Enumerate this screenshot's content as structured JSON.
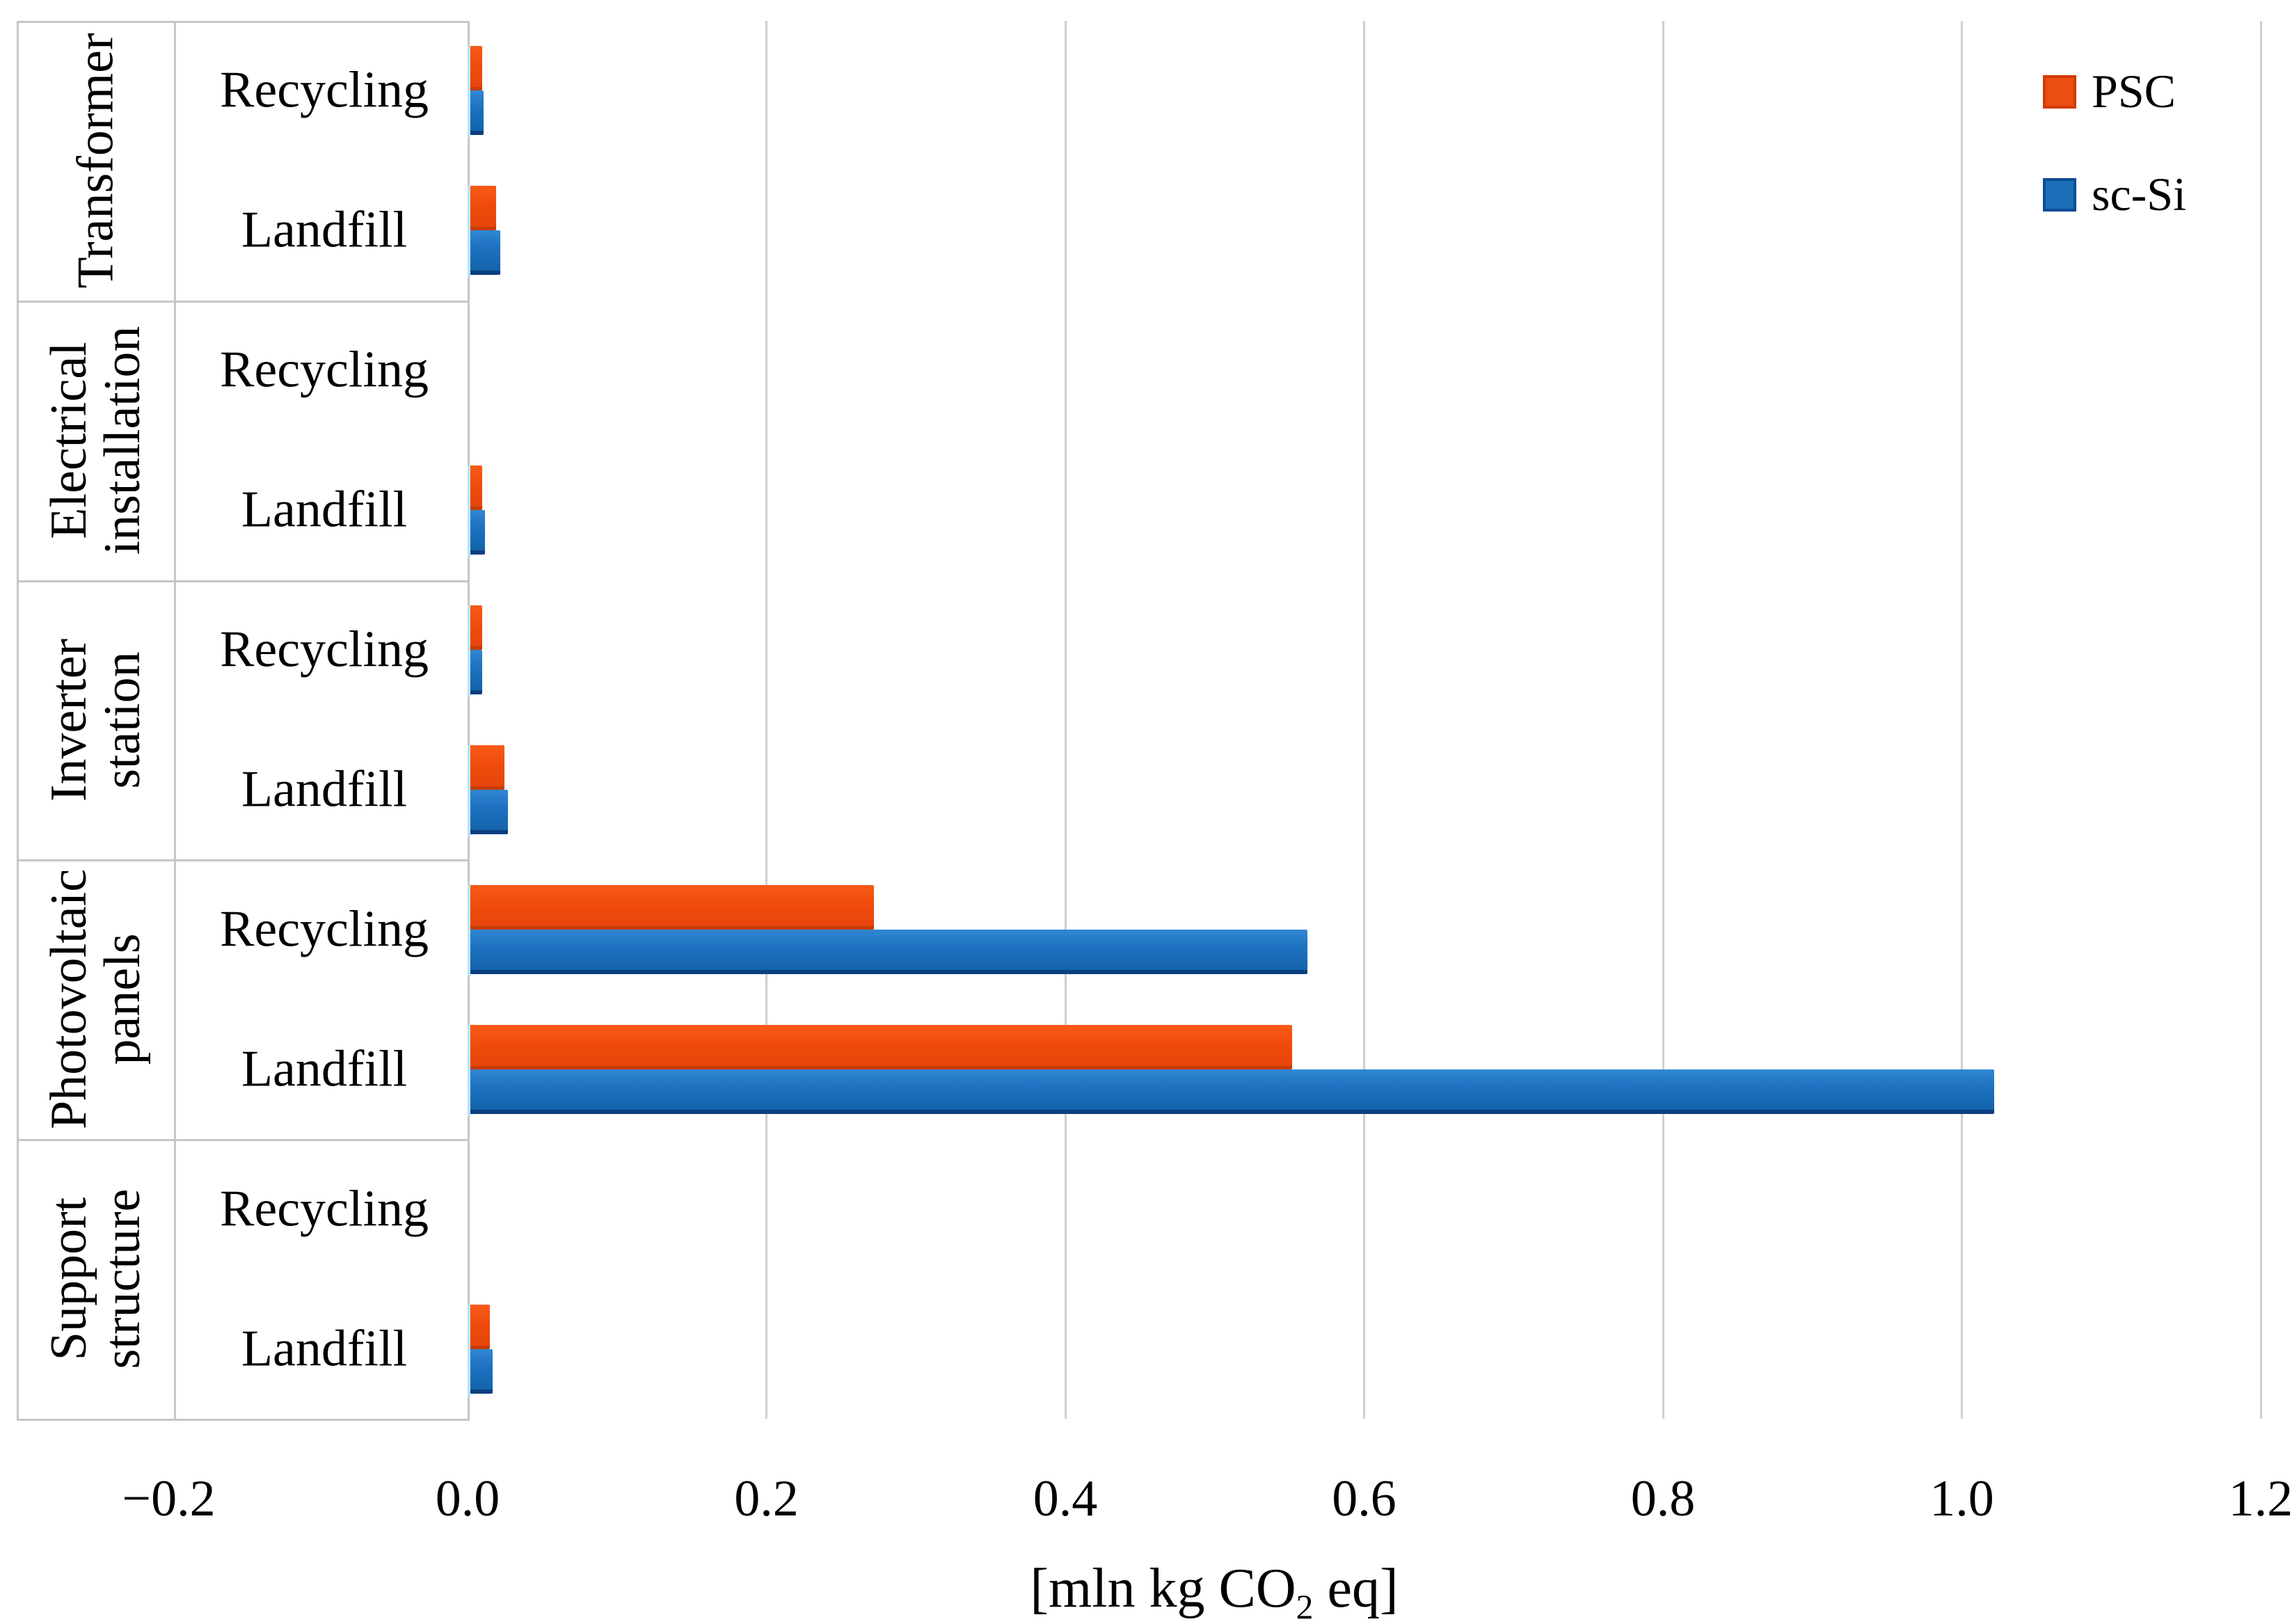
{
  "figure": {
    "background": "#ffffff"
  },
  "legend": {
    "position": "top-right",
    "items": [
      {
        "label": "PSC",
        "color": "#eb4e10",
        "border": "#d43a05"
      },
      {
        "label": "sc-Si",
        "color": "#1c6fb8",
        "border": "#0c4c96"
      }
    ]
  },
  "axis": {
    "title_pre": "[mln kg CO",
    "title_sub": "2",
    "title_post": " eq]",
    "tick_labels": [
      "−0.2",
      "0.0",
      "0.2",
      "0.4",
      "0.6",
      "0.8",
      "1.0",
      "1.2"
    ],
    "tick_values": [
      -0.2,
      0.0,
      0.2,
      0.4,
      0.6,
      0.8,
      1.0,
      1.2
    ]
  },
  "colors": {
    "psc_fill": "#ee4a0c",
    "scsi_fill": "#1a6fbe",
    "grid": "#cfcfcf",
    "panel_border": "#c6c6c6"
  },
  "chart_data": {
    "type": "bar",
    "orientation": "horizontal",
    "title": "",
    "xlabel": "[mln kg CO2 eq]",
    "ylabel": "",
    "xlim": [
      -0.2,
      1.2
    ],
    "x_ticks": [
      -0.2,
      0.0,
      0.2,
      0.4,
      0.6,
      0.8,
      1.0,
      1.2
    ],
    "grid": true,
    "legend_position": "top-right",
    "series_names": [
      "PSC",
      "sc-Si"
    ],
    "groups": [
      {
        "category": "Transformer",
        "category_lines": [
          "Transformer"
        ],
        "rows": [
          {
            "label": "Recycling",
            "values": {
              "PSC": 0.008,
              "sc-Si": 0.009
            }
          },
          {
            "label": "Landfill",
            "values": {
              "PSC": 0.017,
              "sc-Si": 0.02
            }
          }
        ]
      },
      {
        "category": "Electrical installation",
        "category_lines": [
          "Electrical",
          "installation"
        ],
        "rows": [
          {
            "label": "Recycling",
            "values": {
              "PSC": 0.0,
              "sc-Si": 0.0
            }
          },
          {
            "label": "Landfill",
            "values": {
              "PSC": 0.008,
              "sc-Si": 0.01
            }
          }
        ]
      },
      {
        "category": "Inverter station",
        "category_lines": [
          "Inverter",
          "station"
        ],
        "rows": [
          {
            "label": "Recycling",
            "values": {
              "PSC": 0.008,
              "sc-Si": 0.008
            }
          },
          {
            "label": "Landfill",
            "values": {
              "PSC": 0.023,
              "sc-Si": 0.025
            }
          }
        ]
      },
      {
        "category": "Photovoltaic panels",
        "category_lines": [
          "Photovoltaic",
          "panels"
        ],
        "rows": [
          {
            "label": "Recycling",
            "values": {
              "PSC": 0.27,
              "sc-Si": 0.56
            }
          },
          {
            "label": "Landfill",
            "values": {
              "PSC": 0.55,
              "sc-Si": 1.02
            }
          }
        ]
      },
      {
        "category": "Support structure",
        "category_lines": [
          "Support",
          "structure"
        ],
        "rows": [
          {
            "label": "Recycling",
            "values": {
              "PSC": 0.0,
              "sc-Si": 0.0
            }
          },
          {
            "label": "Landfill",
            "values": {
              "PSC": 0.013,
              "sc-Si": 0.015
            }
          }
        ]
      }
    ]
  }
}
